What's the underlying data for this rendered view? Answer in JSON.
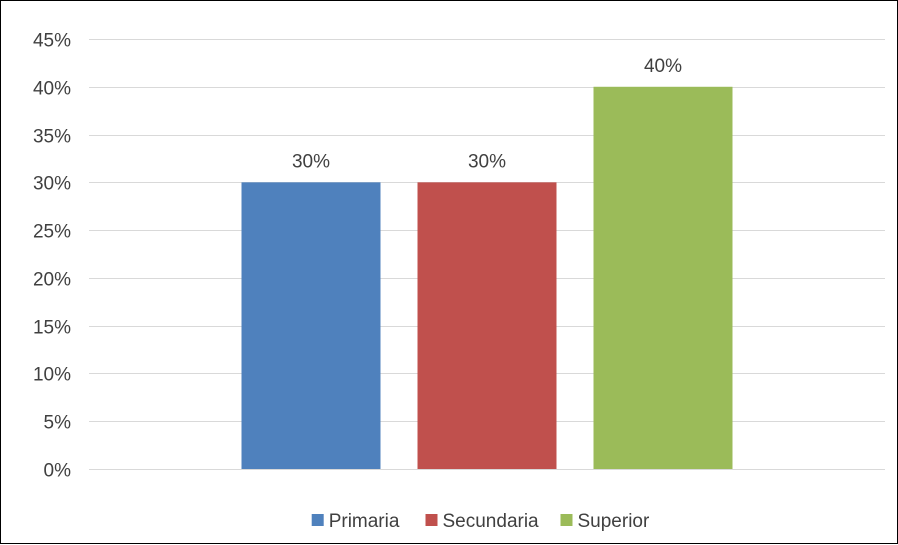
{
  "chart_data": {
    "type": "bar",
    "title": "",
    "xlabel": "",
    "ylabel": "",
    "ylim": [
      0,
      45
    ],
    "y_ticks": [
      0,
      5,
      10,
      15,
      20,
      25,
      30,
      35,
      40,
      45
    ],
    "y_tick_labels": [
      "0%",
      "5%",
      "10%",
      "15%",
      "20%",
      "25%",
      "30%",
      "35%",
      "40%",
      "45%"
    ],
    "grid": true,
    "legend_position": "bottom",
    "series": [
      {
        "name": "Primaria",
        "value": 30,
        "label": "30%",
        "color": "#4F81BD"
      },
      {
        "name": "Secundaria",
        "value": 30,
        "label": "30%",
        "color": "#C0504D"
      },
      {
        "name": "Superior",
        "value": 40,
        "label": "40%",
        "color": "#9BBB59"
      }
    ]
  }
}
